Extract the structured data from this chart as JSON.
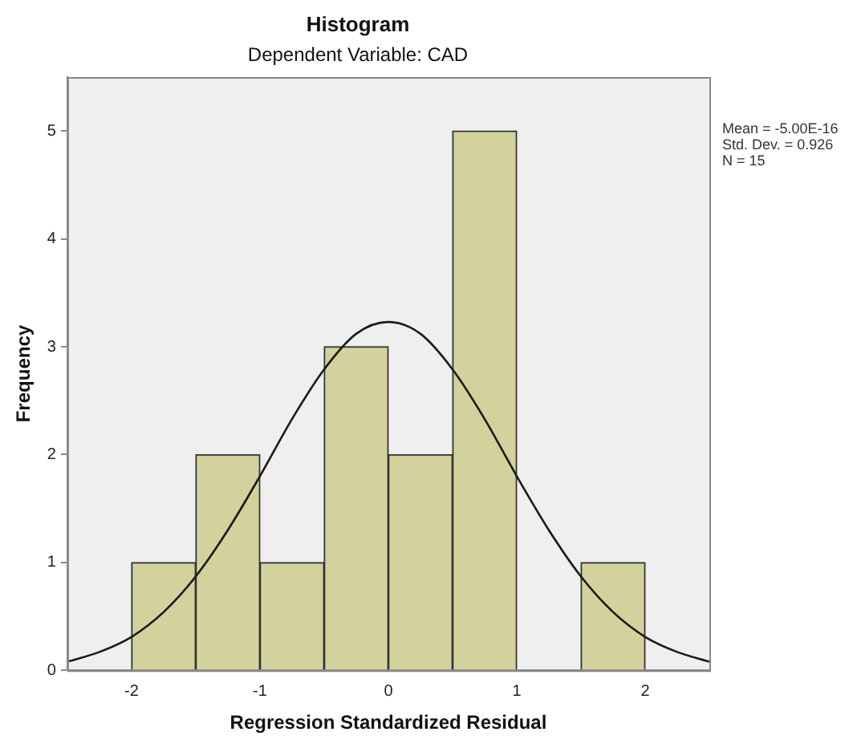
{
  "chart_data": {
    "type": "histogram",
    "title": "Histogram",
    "subtitle": "Dependent Variable: CAD",
    "xlabel": "Regression Standardized Residual",
    "ylabel": "Frequency",
    "bins": [
      -2,
      -1.5,
      -1,
      -0.5,
      0,
      0.5,
      1,
      1.5,
      2
    ],
    "values": [
      1,
      2,
      1,
      3,
      2,
      5,
      0,
      1
    ],
    "color": "#d4d29c",
    "series": [
      {
        "type": "line",
        "color": "#1a1a1a",
        "x": [
          -2.5,
          -2.25,
          -2,
          -1.75,
          -1.5,
          -1.25,
          -1,
          -0.75,
          -0.5,
          -0.25,
          0,
          0.25,
          0.5,
          0.75,
          1,
          1.25,
          1.5,
          1.75,
          2,
          2.25,
          2.5
        ],
        "values": [
          0.08,
          0.17,
          0.31,
          0.54,
          0.87,
          1.3,
          1.8,
          2.33,
          2.79,
          3.12,
          3.23,
          3.12,
          2.79,
          2.33,
          1.8,
          1.3,
          0.87,
          0.54,
          0.31,
          0.17,
          0.08
        ]
      }
    ],
    "annotations": [
      "Mean = -5.00E-16",
      "Std. Dev. = 0.926",
      "N = 15"
    ],
    "xlim": [
      -2.5,
      2.5
    ],
    "xticks": [
      -2,
      -1,
      0,
      1,
      2
    ],
    "ylim": [
      0,
      5.5
    ],
    "yticks": [
      0,
      1,
      2,
      3,
      4,
      5
    ],
    "grid": false,
    "legend": false,
    "marker": "none",
    "line_style": "solid"
  }
}
